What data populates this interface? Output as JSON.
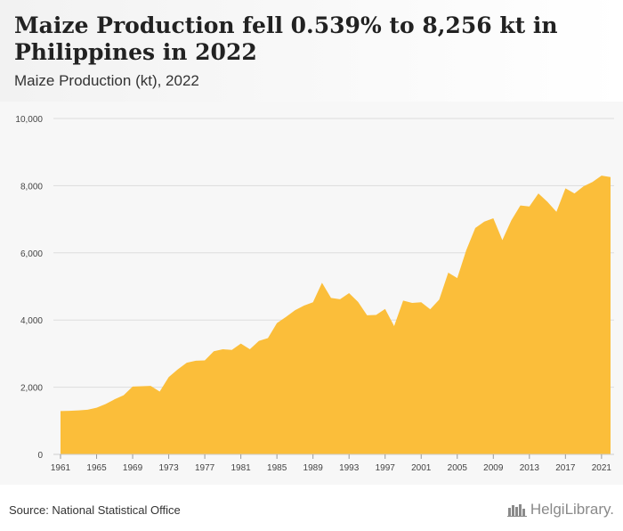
{
  "header": {
    "title": "Maize Production fell 0.539% to 8,256 kt in Philippines in 2022",
    "subtitle": "Maize Production (kt), 2022"
  },
  "footer": {
    "source": "Source: National Statistical Office",
    "brand": "HelgiLibrary."
  },
  "colors": {
    "fill": "#fbbe3a",
    "grid": "#dddddd",
    "header_text": "#222222"
  },
  "chart_data": {
    "type": "area",
    "title": "Maize Production fell 0.539% to 8,256 kt in Philippines in 2022",
    "subtitle": "Maize Production (kt), 2022",
    "xlabel": "",
    "ylabel": "",
    "ylim": [
      0,
      10000
    ],
    "yticks": [
      0,
      2000,
      4000,
      6000,
      8000,
      10000
    ],
    "ytick_labels": [
      "0",
      "2,000",
      "4,000",
      "6,000",
      "8,000",
      "10,000"
    ],
    "xticks": [
      1961,
      1965,
      1969,
      1973,
      1977,
      1981,
      1985,
      1989,
      1993,
      1997,
      2001,
      2005,
      2009,
      2013,
      2017,
      2021
    ],
    "grid": true,
    "x": [
      1961,
      1962,
      1963,
      1964,
      1965,
      1966,
      1967,
      1968,
      1969,
      1970,
      1971,
      1972,
      1973,
      1974,
      1975,
      1976,
      1977,
      1978,
      1979,
      1980,
      1981,
      1982,
      1983,
      1984,
      1985,
      1986,
      1987,
      1988,
      1989,
      1990,
      1991,
      1992,
      1993,
      1994,
      1995,
      1996,
      1997,
      1998,
      1999,
      2000,
      2001,
      2002,
      2003,
      2004,
      2005,
      2006,
      2007,
      2008,
      2009,
      2010,
      2011,
      2012,
      2013,
      2014,
      2015,
      2016,
      2017,
      2018,
      2019,
      2020,
      2021,
      2022
    ],
    "values": [
      1290,
      1295,
      1310,
      1330,
      1390,
      1500,
      1640,
      1760,
      2020,
      2030,
      2040,
      1870,
      2300,
      2530,
      2730,
      2790,
      2800,
      3070,
      3130,
      3110,
      3300,
      3130,
      3380,
      3460,
      3910,
      4090,
      4290,
      4430,
      4530,
      5110,
      4660,
      4620,
      4800,
      4540,
      4140,
      4150,
      4330,
      3820,
      4580,
      4510,
      4530,
      4320,
      4610,
      5410,
      5250,
      6080,
      6740,
      6930,
      7030,
      6380,
      6970,
      7410,
      7380,
      7770,
      7520,
      7220,
      7920,
      7770,
      7980,
      8110,
      8300,
      8256
    ]
  }
}
